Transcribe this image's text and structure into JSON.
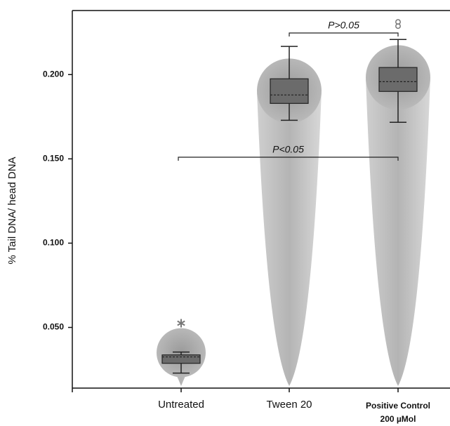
{
  "chart_data": {
    "type": "box",
    "y_label": "% Tail DNA/ head DNA",
    "categories": [
      "Untreated",
      "Tween 20",
      "Positive Control 200 µMol"
    ],
    "boxes": [
      {
        "whisker_high": 0.0354,
        "q3": 0.0337,
        "median": 0.0325,
        "q1": 0.0287,
        "whisker_low": 0.0229,
        "outliers": [
          0.0525
        ]
      },
      {
        "whisker_high": 0.2167,
        "q3": 0.1975,
        "median": 0.1879,
        "q1": 0.1829,
        "whisker_low": 0.1729,
        "outliers": []
      },
      {
        "whisker_high": 0.2208,
        "q3": 0.2042,
        "median": 0.1958,
        "q1": 0.19,
        "whisker_low": 0.1717,
        "outliers": [
          0.23
        ]
      }
    ],
    "annotations": [
      "P>0.05",
      "P<0.05"
    ],
    "box_color": "#6b6b6b",
    "ylim": [
      0.014,
      0.238
    ],
    "yticks": [
      {
        "value": 0.05,
        "label": "0.050"
      },
      {
        "value": 0.1,
        "label": "0.100"
      },
      {
        "value": 0.15,
        "label": "0.150"
      },
      {
        "value": 0.2,
        "label": "0.200"
      }
    ]
  }
}
